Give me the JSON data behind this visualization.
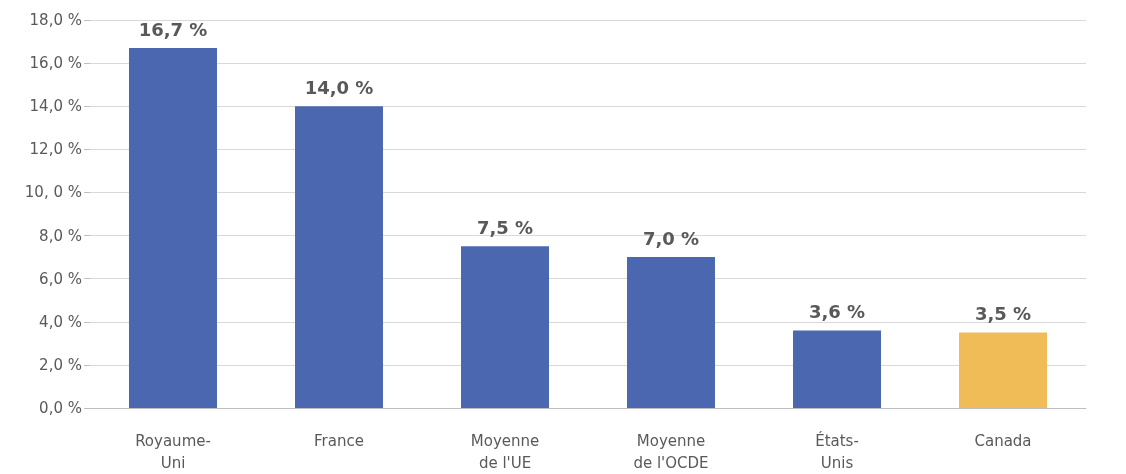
{
  "chart_data": {
    "type": "bar",
    "categories": [
      "Royaume-Uni",
      "France",
      "Moyenne de l'UE",
      "Moyenne de l'OCDE",
      "États-Unis",
      "Canada"
    ],
    "values": [
      16.7,
      14.0,
      7.5,
      7.0,
      3.6,
      3.5
    ],
    "colors": [
      "#4a67b0",
      "#4a67b0",
      "#4a67b0",
      "#4a67b0",
      "#4a67b0",
      "#f0bc58"
    ],
    "value_labels": [
      "16,7 %",
      "14,0 %",
      "7,5 %",
      "7,0 %",
      "3,6 %",
      "3,5 %"
    ],
    "ylim": [
      0,
      18
    ],
    "yticks": [
      {
        "value": 0,
        "label": "0,0 %"
      },
      {
        "value": 2,
        "label": "2,0 %"
      },
      {
        "value": 4,
        "label": "4,0 %"
      },
      {
        "value": 6,
        "label": "6,0 %"
      },
      {
        "value": 8,
        "label": "8,0 %"
      },
      {
        "value": 10,
        "label": "10, 0 %"
      },
      {
        "value": 12,
        "label": "12,0 %"
      },
      {
        "value": 14,
        "label": "14,0 %"
      },
      {
        "value": 16,
        "label": "16,0 %"
      },
      {
        "value": 18,
        "label": "18,0 %"
      }
    ],
    "grid": "y"
  }
}
